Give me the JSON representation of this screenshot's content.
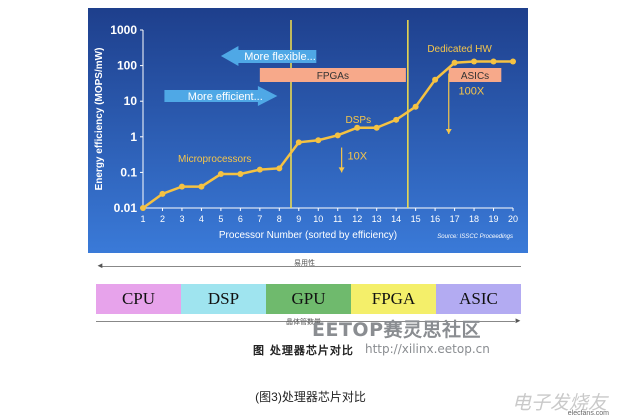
{
  "chart_data": {
    "type": "line",
    "xlabel": "Processor Number (sorted by efficiency)",
    "ylabel": "Energy efficiency (MOPS/mW)",
    "x": [
      1,
      2,
      3,
      4,
      5,
      6,
      7,
      8,
      9,
      10,
      11,
      12,
      13,
      14,
      15,
      16,
      17,
      18,
      19,
      20
    ],
    "y_ticks": [
      "0.01",
      "0.1",
      "1",
      "10",
      "100",
      "1000"
    ],
    "x_ticks": [
      "1",
      "2",
      "3",
      "4",
      "5",
      "6",
      "7",
      "8",
      "9",
      "10",
      "11",
      "12",
      "13",
      "14",
      "15",
      "16",
      "17",
      "18",
      "19",
      "20"
    ],
    "series": [
      {
        "values": [
          0.01,
          0.025,
          0.04,
          0.04,
          0.09,
          0.09,
          0.12,
          0.13,
          0.7,
          0.8,
          1.1,
          1.8,
          1.8,
          3,
          7,
          40,
          120,
          130,
          130,
          130
        ]
      }
    ],
    "ylim": [
      0.01,
      1000
    ],
    "yscale": "log",
    "xlim": [
      1,
      20
    ],
    "vlines": [
      8.6,
      14.6
    ],
    "annotations": {
      "more_flexible": "More flexible...",
      "more_efficient": "More efficient...",
      "fpgas": "FPGAs",
      "asics": "ASICs",
      "dedicated_hw": "Dedicated HW",
      "dsps": "DSPs",
      "microprocessors": "Microprocessors",
      "ten_x": "10X",
      "hundred_x": "100X",
      "source": "Source: ISSCC Proceedings"
    },
    "colors": {
      "background_top": "#1e3f8c",
      "background_bottom": "#3a7ad8",
      "line": "#f5c242",
      "label": "#f6c64a",
      "arrow": "#4fa8e6",
      "range_bar": "#f7a98a"
    }
  },
  "bottom": {
    "top_label": "易用性",
    "bottom_label": "晶体管数量",
    "segments": [
      {
        "label": "CPU",
        "color": "#e7a3eb"
      },
      {
        "label": "DSP",
        "color": "#9fe4ef"
      },
      {
        "label": "GPU",
        "color": "#6fba6d"
      },
      {
        "label": "FPGA",
        "color": "#f4ef6a"
      },
      {
        "label": "ASIC",
        "color": "#b3abf2"
      }
    ],
    "figure_title": "图 处理器芯片对比"
  },
  "watermark": {
    "brand": "EETOP赛灵思社区",
    "url": "http://xilinx.eetop.cn",
    "site": "电子发烧友",
    "site_sub": "elecfans.com"
  },
  "caption": "(图3)处理器芯片对比"
}
